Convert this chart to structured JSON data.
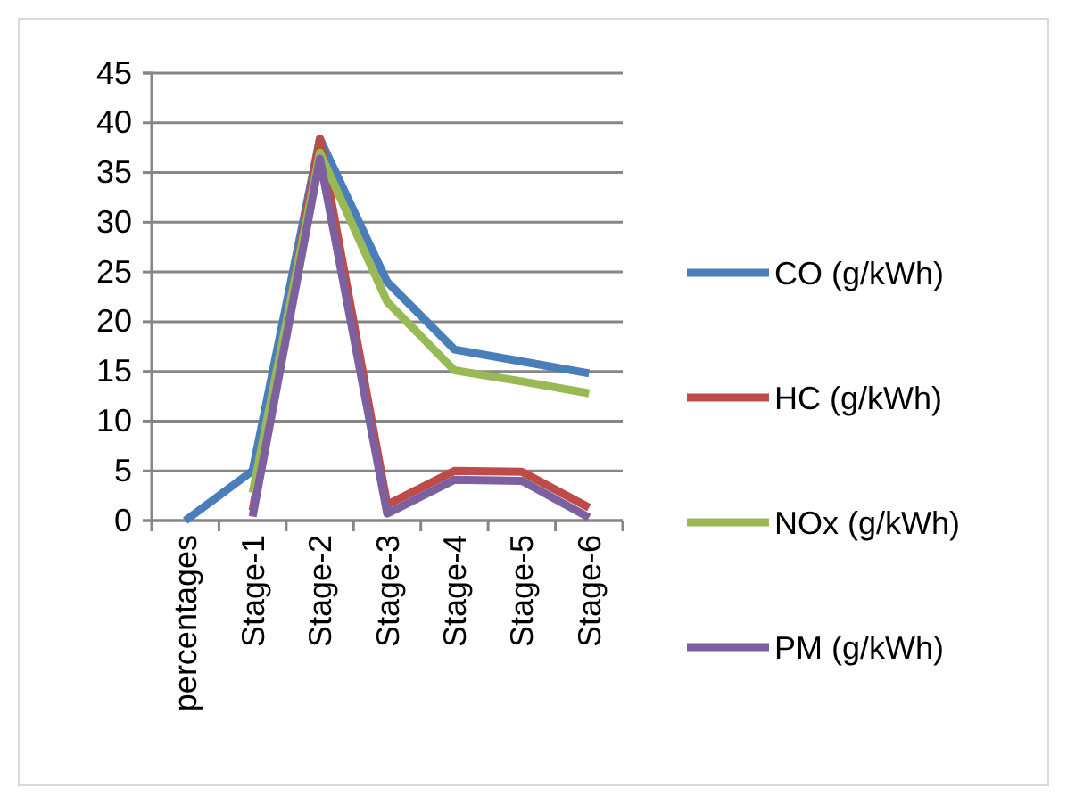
{
  "chart_data": {
    "type": "line",
    "categories": [
      "percentages",
      "Stage-1",
      "Stage-2",
      "Stage-3",
      "Stage-4",
      "Stage-5",
      "Stage-6"
    ],
    "series": [
      {
        "name": "CO (g/kWh)",
        "color": "#4a7ebb",
        "values": [
          0,
          5,
          38.4,
          24,
          17.2,
          16,
          14.8
        ]
      },
      {
        "name": "HC (g/kWh)",
        "color": "#be4b48",
        "values": [
          null,
          1,
          38.4,
          1.6,
          5,
          4.9,
          1.3
        ]
      },
      {
        "name": "NOx (g/kWh)",
        "color": "#98b954",
        "values": [
          null,
          2.8,
          37,
          22,
          15.1,
          14,
          12.8
        ]
      },
      {
        "name": "PM (g/kWh)",
        "color": "#7d60a0",
        "values": [
          null,
          0.4,
          36.4,
          0.7,
          4.1,
          4,
          0.3
        ]
      }
    ],
    "ylim": [
      0,
      45
    ],
    "yticks": [
      0,
      5,
      10,
      15,
      20,
      25,
      30,
      35,
      40,
      45
    ],
    "grid": "y",
    "legend": "right",
    "marker": "none",
    "line_style": "solid"
  }
}
